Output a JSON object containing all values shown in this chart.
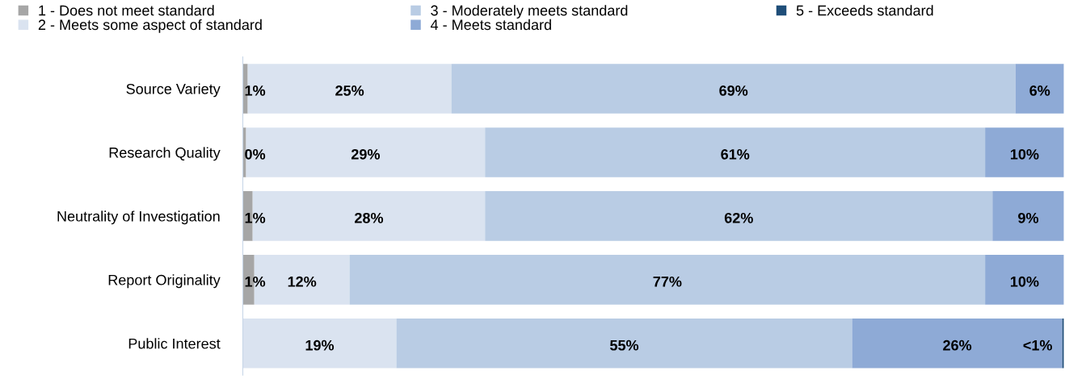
{
  "chart_data": {
    "type": "bar",
    "orientation": "horizontal",
    "stacked": true,
    "categories": [
      "Source Variety",
      "Research Quality",
      "Neutrality of Investigation",
      "Report Originality",
      "Public Interest"
    ],
    "series": [
      {
        "name": "1 - Does not meet standard",
        "color": "#a6a6a6",
        "values": [
          0.6,
          0.4,
          1.2,
          1.4,
          null
        ],
        "value_labels": [
          "1%",
          "0%",
          "1%",
          "1%",
          null
        ]
      },
      {
        "name": "2 - Meets some aspect of standard",
        "color": "#dae3f0",
        "values": [
          24.8,
          29.1,
          28.3,
          11.6,
          18.7
        ],
        "value_labels": [
          "25%",
          "29%",
          "28%",
          "12%",
          "19%"
        ]
      },
      {
        "name": "3 - Moderately meets standard",
        "color": "#b9cce4",
        "values": [
          68.7,
          60.9,
          61.8,
          77.4,
          55.5
        ],
        "value_labels": [
          "69%",
          "61%",
          "62%",
          "77%",
          "55%"
        ]
      },
      {
        "name": "4 - Meets standard",
        "color": "#8eaad6",
        "values": [
          5.9,
          9.6,
          8.7,
          9.6,
          25.6
        ],
        "value_labels": [
          "6%",
          "10%",
          "9%",
          "10%",
          "26%"
        ]
      },
      {
        "name": "5 - Exceeds standard",
        "color": "#1f4e79",
        "values": [
          null,
          null,
          null,
          null,
          0.2
        ],
        "value_labels": [
          null,
          null,
          null,
          null,
          "<1%"
        ]
      }
    ],
    "legend": "top left",
    "grid": false
  }
}
